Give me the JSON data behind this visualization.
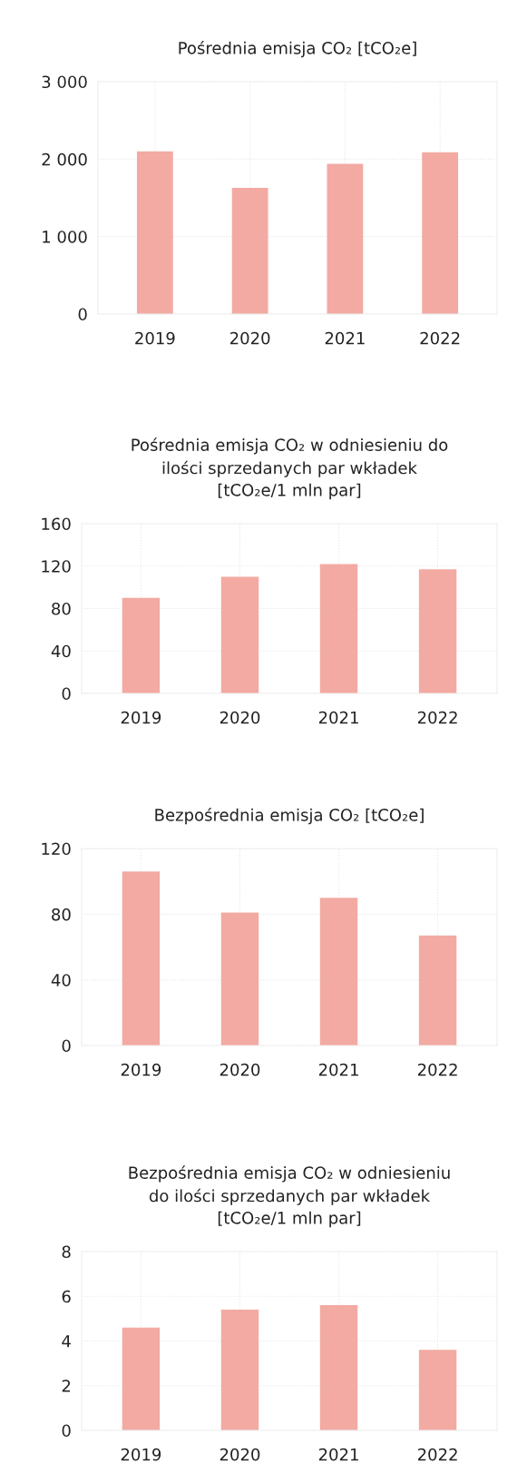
{
  "chart_data": [
    {
      "type": "bar",
      "title": "Pośrednia emisja CO₂ [tCO₂e]",
      "categories": [
        "2019",
        "2020",
        "2021",
        "2022"
      ],
      "values": [
        2100,
        1630,
        1940,
        2090
      ],
      "color": "#f2aaa2",
      "ylim": [
        0,
        3000
      ],
      "yticks": [
        {
          "value": 0,
          "label": "0"
        },
        {
          "value": 1000,
          "label": "1 000"
        },
        {
          "value": 2000,
          "label": "2 000"
        },
        {
          "value": 3000,
          "label": "3 000"
        }
      ],
      "grid": true
    },
    {
      "type": "bar",
      "title": "Pośrednia emisja CO₂ w odniesieniu do\nilości sprzedanych par wkładek\n[tCO₂e/1 mln par]",
      "categories": [
        "2019",
        "2020",
        "2021",
        "2022"
      ],
      "values": [
        90,
        110,
        122,
        117
      ],
      "color": "#f2aaa2",
      "ylim": [
        0,
        160
      ],
      "yticks": [
        0,
        40,
        80,
        120,
        160
      ],
      "grid": true
    },
    {
      "type": "bar",
      "title": "Bezpośrednia emisja CO₂ [tCO₂e]",
      "categories": [
        "2019",
        "2020",
        "2021",
        "2022"
      ],
      "values": [
        106,
        81,
        90,
        67
      ],
      "color": "#f2aaa2",
      "ylim": [
        0,
        120
      ],
      "yticks": [
        0,
        40,
        80,
        120
      ],
      "grid": true
    },
    {
      "type": "bar",
      "title": "Bezpośrednia emisja CO₂ w odniesieniu\ndo ilości sprzedanych par wkładek\n[tCO₂e/1 mln par]",
      "categories": [
        "2019",
        "2020",
        "2021",
        "2022"
      ],
      "values": [
        4.6,
        5.4,
        5.6,
        3.6
      ],
      "color": "#f2aaa2",
      "ylim": [
        0,
        8
      ],
      "yticks": [
        0,
        2,
        4,
        6,
        8
      ],
      "grid": true
    }
  ]
}
